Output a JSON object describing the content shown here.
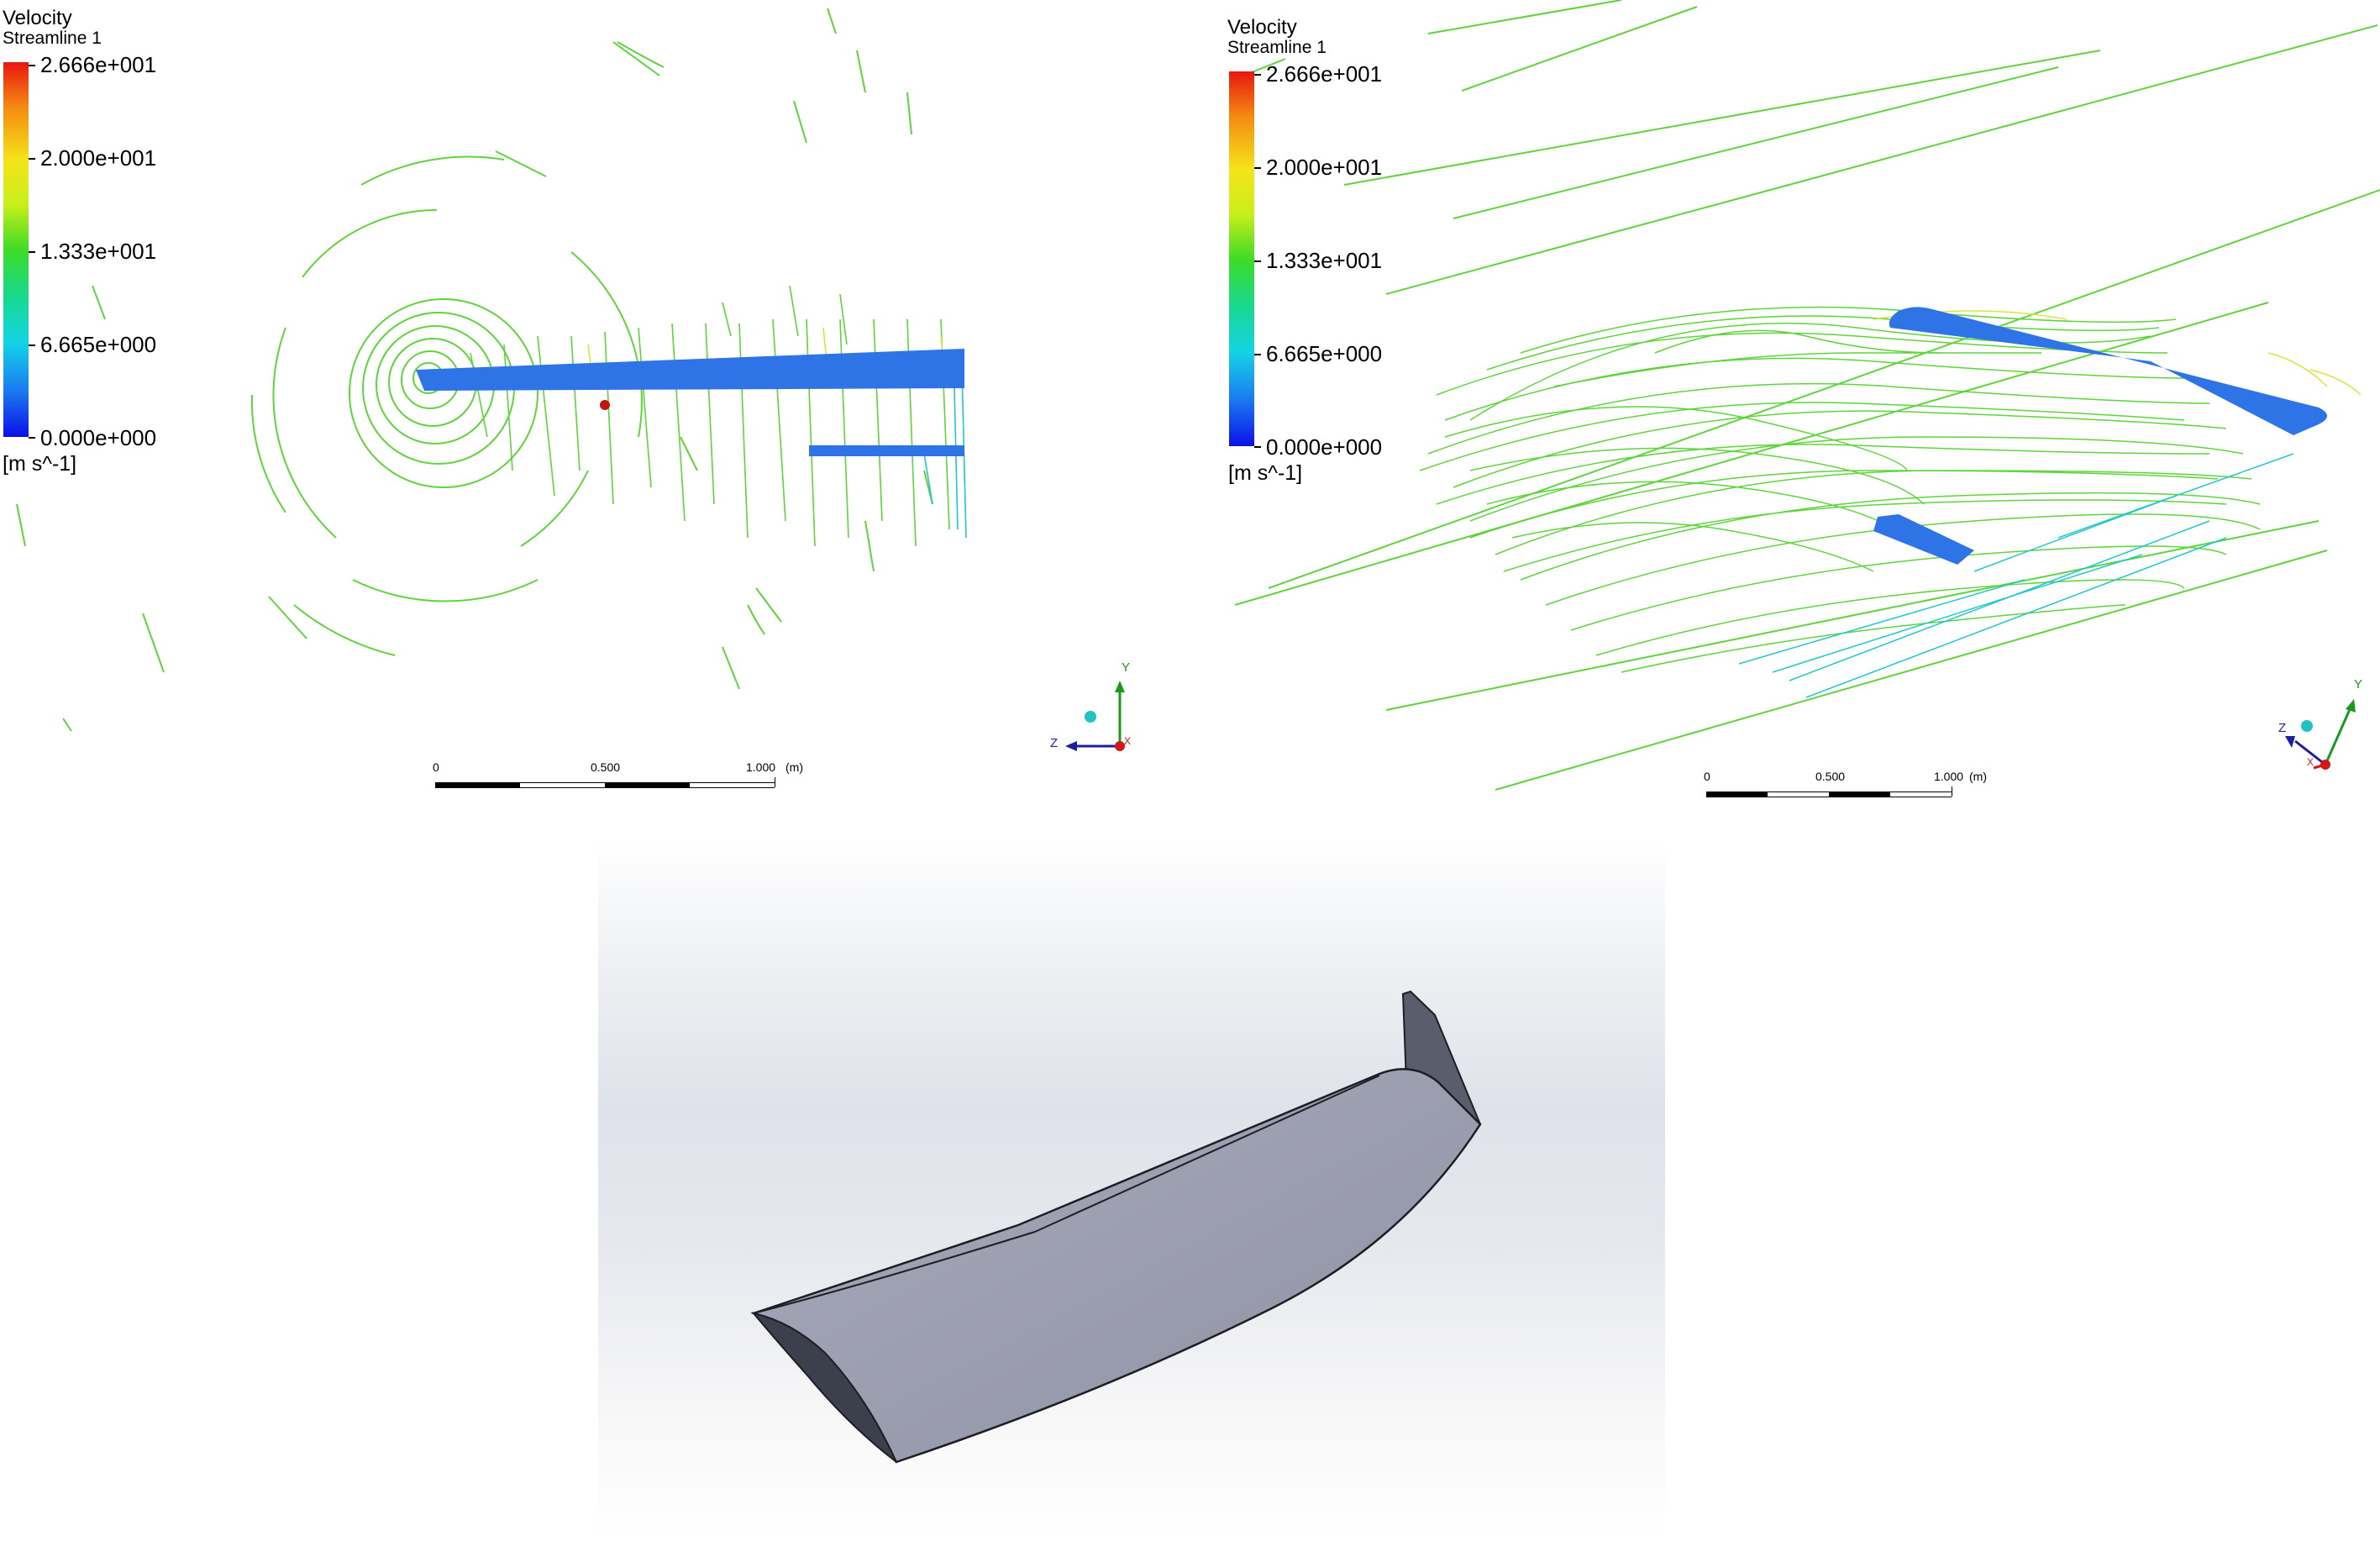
{
  "left_view": {
    "legend": {
      "title": "Velocity",
      "subtitle": "Streamline 1",
      "ticks": [
        "2.666e+001",
        "2.000e+001",
        "1.333e+001",
        "6.665e+000",
        "0.000e+000"
      ],
      "unit": "[m s^-1]"
    },
    "scale": {
      "labels": [
        "0",
        "0.500",
        "1.000",
        "(m)"
      ]
    },
    "triad": {
      "axes": [
        "Y",
        "Z",
        "X"
      ]
    }
  },
  "right_view": {
    "legend": {
      "title": "Velocity",
      "subtitle": "Streamline 1",
      "ticks": [
        "2.666e+001",
        "2.000e+001",
        "1.333e+001",
        "6.665e+000",
        "0.000e+000"
      ],
      "unit": "[m s^-1]"
    },
    "scale": {
      "labels": [
        "0",
        "0.500",
        "1.000",
        "(m)"
      ]
    },
    "triad": {
      "axes": [
        "Y",
        "Z",
        "X"
      ]
    }
  },
  "colors": {
    "wing_surface": "#2f74e6",
    "streamline_green": "#55d63a",
    "streamline_cyan": "#22c7c8",
    "streamline_yellow": "#d9e53a",
    "cad_body": "#9fa2b2",
    "cad_edge": "#1d1d24"
  }
}
